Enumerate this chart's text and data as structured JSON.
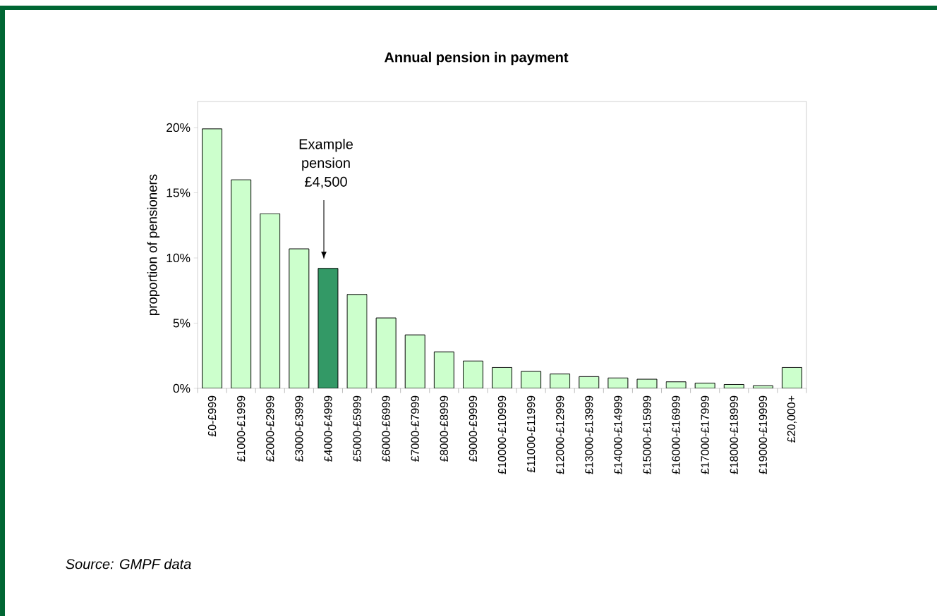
{
  "chart_data": {
    "type": "bar",
    "title": "Annual pension in payment",
    "ylabel": "proportion of pensioners",
    "categories": [
      "£0-£999",
      "£1000-£1999",
      "£2000-£2999",
      "£3000-£3999",
      "£4000-£4999",
      "£5000-£5999",
      "£6000-£6999",
      "£7000-£7999",
      "£8000-£8999",
      "£9000-£9999",
      "£10000-£10999",
      "£11000-£11999",
      "£12000-£12999",
      "£13000-£13999",
      "£14000-£14999",
      "£15000-£15999",
      "£16000-£16999",
      "£17000-£17999",
      "£18000-£18999",
      "£19000-£19999",
      "£20,000+"
    ],
    "values": [
      19.9,
      16.0,
      13.4,
      10.7,
      9.2,
      7.2,
      5.4,
      4.1,
      2.8,
      2.1,
      1.6,
      1.3,
      1.1,
      0.9,
      0.8,
      0.7,
      0.5,
      0.4,
      0.3,
      0.2,
      1.6
    ],
    "colors": [
      "#ccffcc",
      "#ccffcc",
      "#ccffcc",
      "#ccffcc",
      "#339966",
      "#ccffcc",
      "#ccffcc",
      "#ccffcc",
      "#ccffcc",
      "#ccffcc",
      "#ccffcc",
      "#ccffcc",
      "#ccffcc",
      "#ccffcc",
      "#ccffcc",
      "#ccffcc",
      "#ccffcc",
      "#ccffcc",
      "#ccffcc",
      "#ccffcc",
      "#ccffcc"
    ],
    "ylim": [
      0,
      22
    ],
    "yticks": [
      {
        "value": 0,
        "label": "0%"
      },
      {
        "value": 5,
        "label": "5%"
      },
      {
        "value": 10,
        "label": "10%"
      },
      {
        "value": 15,
        "label": "15%"
      },
      {
        "value": 20,
        "label": "20%"
      }
    ],
    "grid": false,
    "annotations": [
      "Example pension £4,500",
      "Source: GMPF data"
    ]
  }
}
